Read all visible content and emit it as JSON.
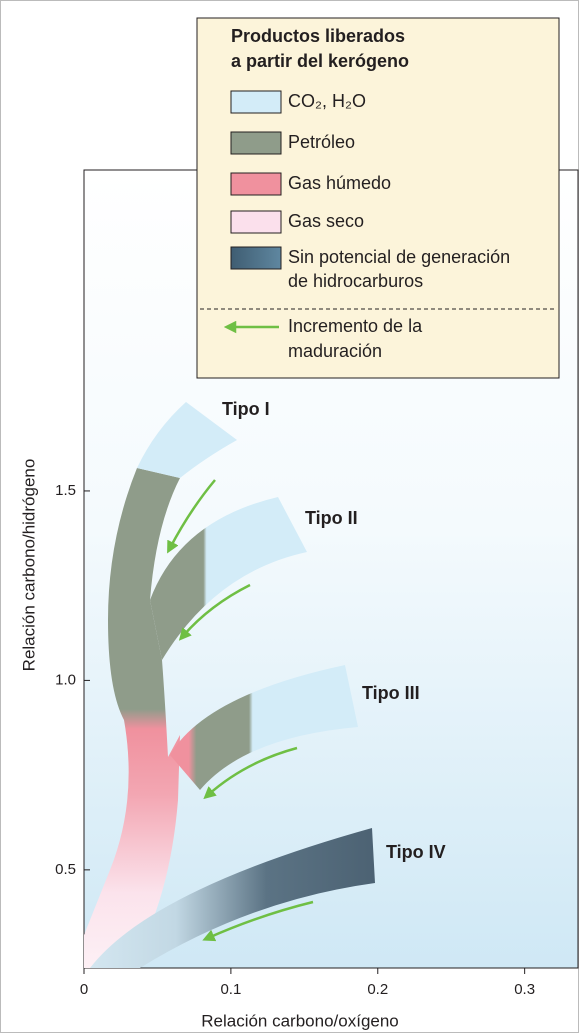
{
  "diagram": {
    "legend": {
      "title": [
        "Productos liberados",
        "a partir del kerógeno"
      ],
      "items": [
        {
          "label": [
            "CO₂, H₂O"
          ],
          "color": "#d3ecf8"
        },
        {
          "label": [
            "Petróleo"
          ],
          "color": "#8f9c8a"
        },
        {
          "label": [
            "Gas húmedo"
          ],
          "color": "#f0919e"
        },
        {
          "label": [
            "Gas seco"
          ],
          "color": "#fbe0ec"
        },
        {
          "label": [
            "Sin potencial de generación",
            "de hidrocarburos"
          ],
          "color": "#4e6f86"
        }
      ],
      "arrow_label": [
        "Incremento de la",
        "maduración"
      ]
    },
    "types": [
      "Tipo I",
      "Tipo II",
      "Tipo III",
      "Tipo IV"
    ],
    "xlabel": "Relación carbono/oxígeno",
    "ylabel": "Relación carbono/hidrógeno",
    "xlim": [
      0,
      0.337
    ],
    "ylim": [
      0.241,
      2.347
    ],
    "xticks": [
      0,
      0.1,
      0.2,
      0.3
    ],
    "yticks": [
      0.5,
      {
        "value": 1,
        "label": "1.0"
      },
      1.5
    ]
  }
}
